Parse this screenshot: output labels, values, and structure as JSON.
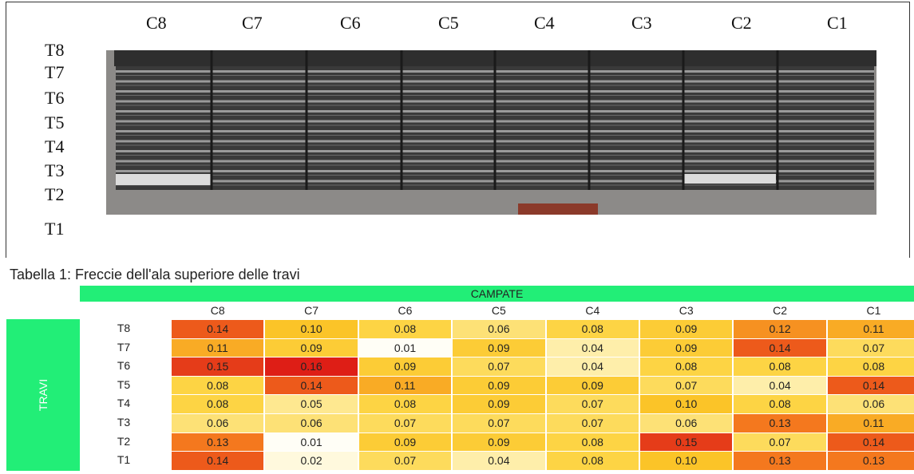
{
  "figure": {
    "column_labels": [
      "C8",
      "C7",
      "C6",
      "C5",
      "C4",
      "C3",
      "C2",
      "C1"
    ],
    "row_labels": [
      "T8",
      "T7",
      "T6",
      "T5",
      "T4",
      "T3",
      "T2",
      "T1"
    ]
  },
  "caption": "Tabella 1: Freccie dell'ala superiore delle travi",
  "table": {
    "group_header": "CAMPATE",
    "row_group": "TRAVI",
    "columns": [
      "C8",
      "C7",
      "C6",
      "C5",
      "C4",
      "C3",
      "C2",
      "C1"
    ],
    "rows": [
      {
        "label": "T8",
        "cells": [
          "0.14",
          "0.10",
          "0.08",
          "0.06",
          "0.08",
          "0.09",
          "0.12",
          "0.11"
        ]
      },
      {
        "label": "T7",
        "cells": [
          "0.11",
          "0.09",
          "0.01",
          "0.09",
          "0.04",
          "0.09",
          "0.14",
          "0.07"
        ]
      },
      {
        "label": "T6",
        "cells": [
          "0.15",
          "0.16",
          "0.09",
          "0.07",
          "0.04",
          "0.08",
          "0.08",
          "0.08"
        ]
      },
      {
        "label": "T5",
        "cells": [
          "0.08",
          "0.14",
          "0.11",
          "0.09",
          "0.09",
          "0.07",
          "0.04",
          "0.14"
        ]
      },
      {
        "label": "T4",
        "cells": [
          "0.08",
          "0.05",
          "0.08",
          "0.09",
          "0.07",
          "0.10",
          "0.08",
          "0.06"
        ]
      },
      {
        "label": "T3",
        "cells": [
          "0.06",
          "0.06",
          "0.07",
          "0.07",
          "0.07",
          "0.06",
          "0.13",
          "0.11"
        ]
      },
      {
        "label": "T2",
        "cells": [
          "0.13",
          "0.01",
          "0.09",
          "0.09",
          "0.08",
          "0.15",
          "0.07",
          "0.14"
        ]
      },
      {
        "label": "T1",
        "cells": [
          "0.14",
          "0.02",
          "0.07",
          "0.04",
          "0.08",
          "0.10",
          "0.13",
          "0.13"
        ]
      }
    ]
  }
}
